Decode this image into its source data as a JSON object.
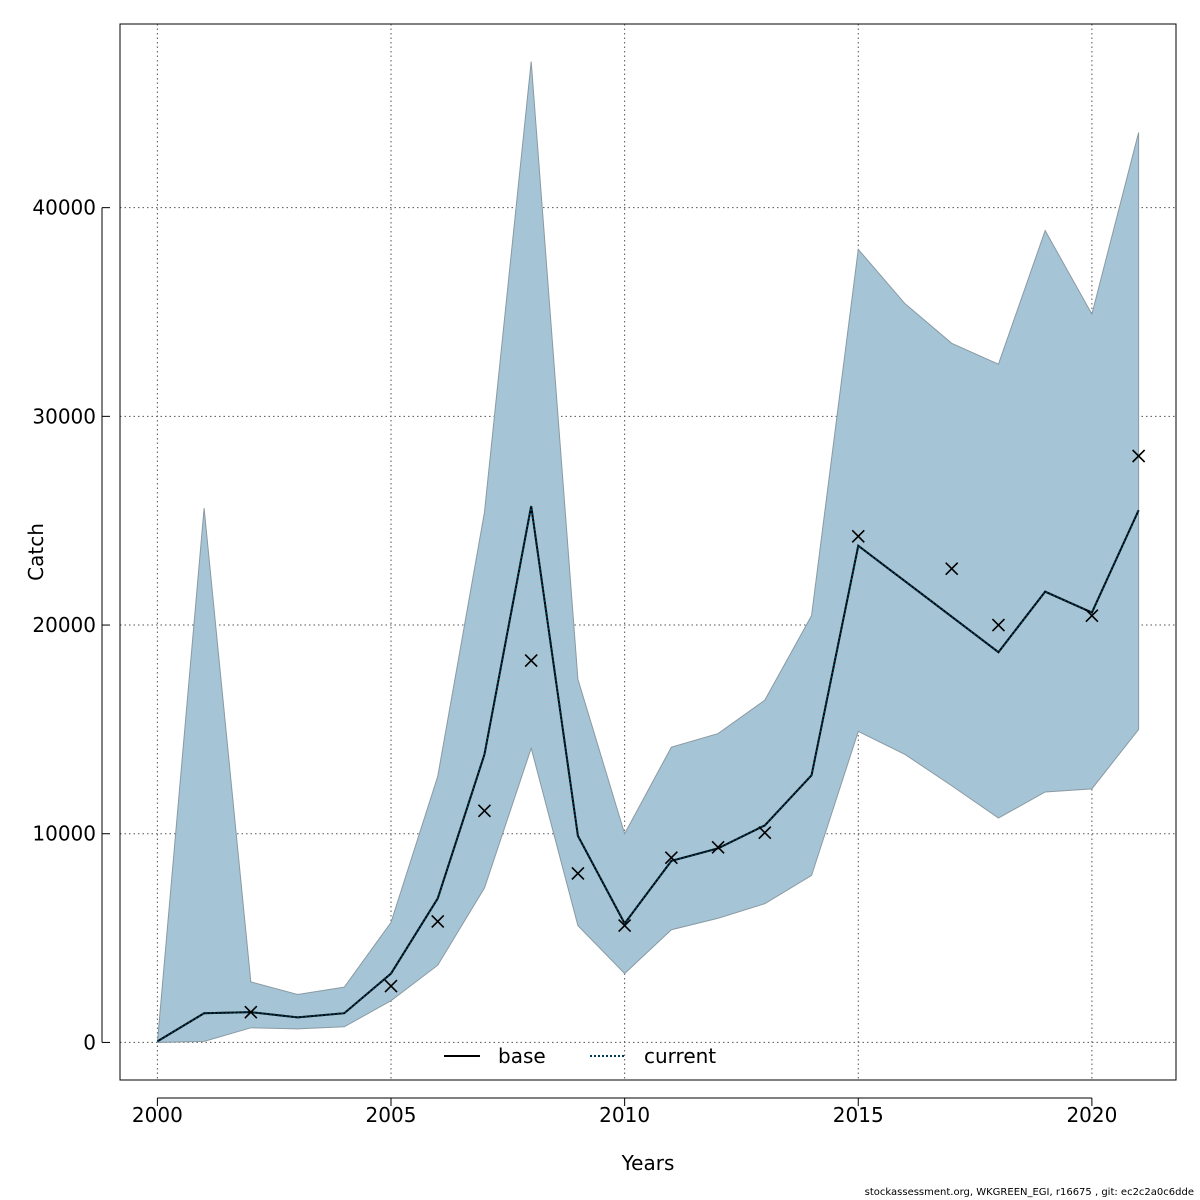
{
  "chart_data": {
    "type": "line",
    "xlabel": "Years",
    "ylabel": "Catch",
    "xlim": [
      1999.2,
      2021.8
    ],
    "ylim": [
      -1800,
      48800
    ],
    "x_ticks": [
      2000,
      2005,
      2010,
      2015,
      2020
    ],
    "y_ticks": [
      0,
      10000,
      20000,
      30000,
      40000
    ],
    "grid": true,
    "legend_position": "bottom-center",
    "band": {
      "color": "#a5c4d5",
      "x": [
        2000,
        2001,
        2002,
        2003,
        2004,
        2005,
        2006,
        2007,
        2008,
        2009,
        2010,
        2011,
        2012,
        2013,
        2014,
        2015,
        2016,
        2017,
        2018,
        2019,
        2020,
        2021
      ],
      "lower": [
        0,
        50,
        700,
        650,
        750,
        2000,
        3700,
        7400,
        14100,
        5600,
        3300,
        5400,
        5950,
        6650,
        8000,
        14900,
        13800,
        12300,
        10750,
        12000,
        12150,
        15000
      ],
      "upper": [
        0,
        25600,
        2900,
        2300,
        2650,
        5750,
        12750,
        25400,
        47000,
        17400,
        10000,
        14150,
        14800,
        16400,
        20450,
        38000,
        35400,
        33500,
        32500,
        38900,
        34900,
        43600
      ]
    },
    "series": [
      {
        "name": "base",
        "style": "solid",
        "color": "#000000",
        "x": [
          2000,
          2001,
          2002,
          2003,
          2004,
          2005,
          2006,
          2007,
          2008,
          2009,
          2010,
          2011,
          2012,
          2013,
          2014,
          2015,
          2016,
          2017,
          2018,
          2019,
          2020,
          2021
        ],
        "y": [
          50,
          1400,
          1450,
          1200,
          1400,
          3300,
          6900,
          13800,
          25700,
          9900,
          5700,
          8700,
          9300,
          10400,
          12800,
          23800,
          22100,
          20400,
          18700,
          21600,
          20600,
          25500
        ]
      },
      {
        "name": "current",
        "style": "dotted",
        "color": "#003a52",
        "x": [
          2000,
          2001,
          2002,
          2003,
          2004,
          2005,
          2006,
          2007,
          2008,
          2009,
          2010,
          2011,
          2012,
          2013,
          2014,
          2015,
          2016,
          2017,
          2018,
          2019,
          2020,
          2021
        ],
        "y": [
          50,
          1400,
          1450,
          1200,
          1400,
          3300,
          6900,
          13800,
          25700,
          9900,
          5700,
          8700,
          9300,
          10400,
          12800,
          23800,
          22100,
          20400,
          18700,
          21600,
          20600,
          25500
        ]
      }
    ],
    "observations": {
      "marker": "x",
      "x": [
        2002,
        2005,
        2006,
        2007,
        2008,
        2009,
        2010,
        2011,
        2012,
        2013,
        2015,
        2017,
        2018,
        2020,
        2021
      ],
      "y": [
        1450,
        2700,
        5800,
        11100,
        18300,
        8100,
        5600,
        8850,
        9350,
        10050,
        24250,
        22700,
        20000,
        20450,
        28100
      ]
    }
  },
  "footer": "stockassessment.org, WKGREEN_EGI, r16675 , git: ec2c2a0c6dde"
}
